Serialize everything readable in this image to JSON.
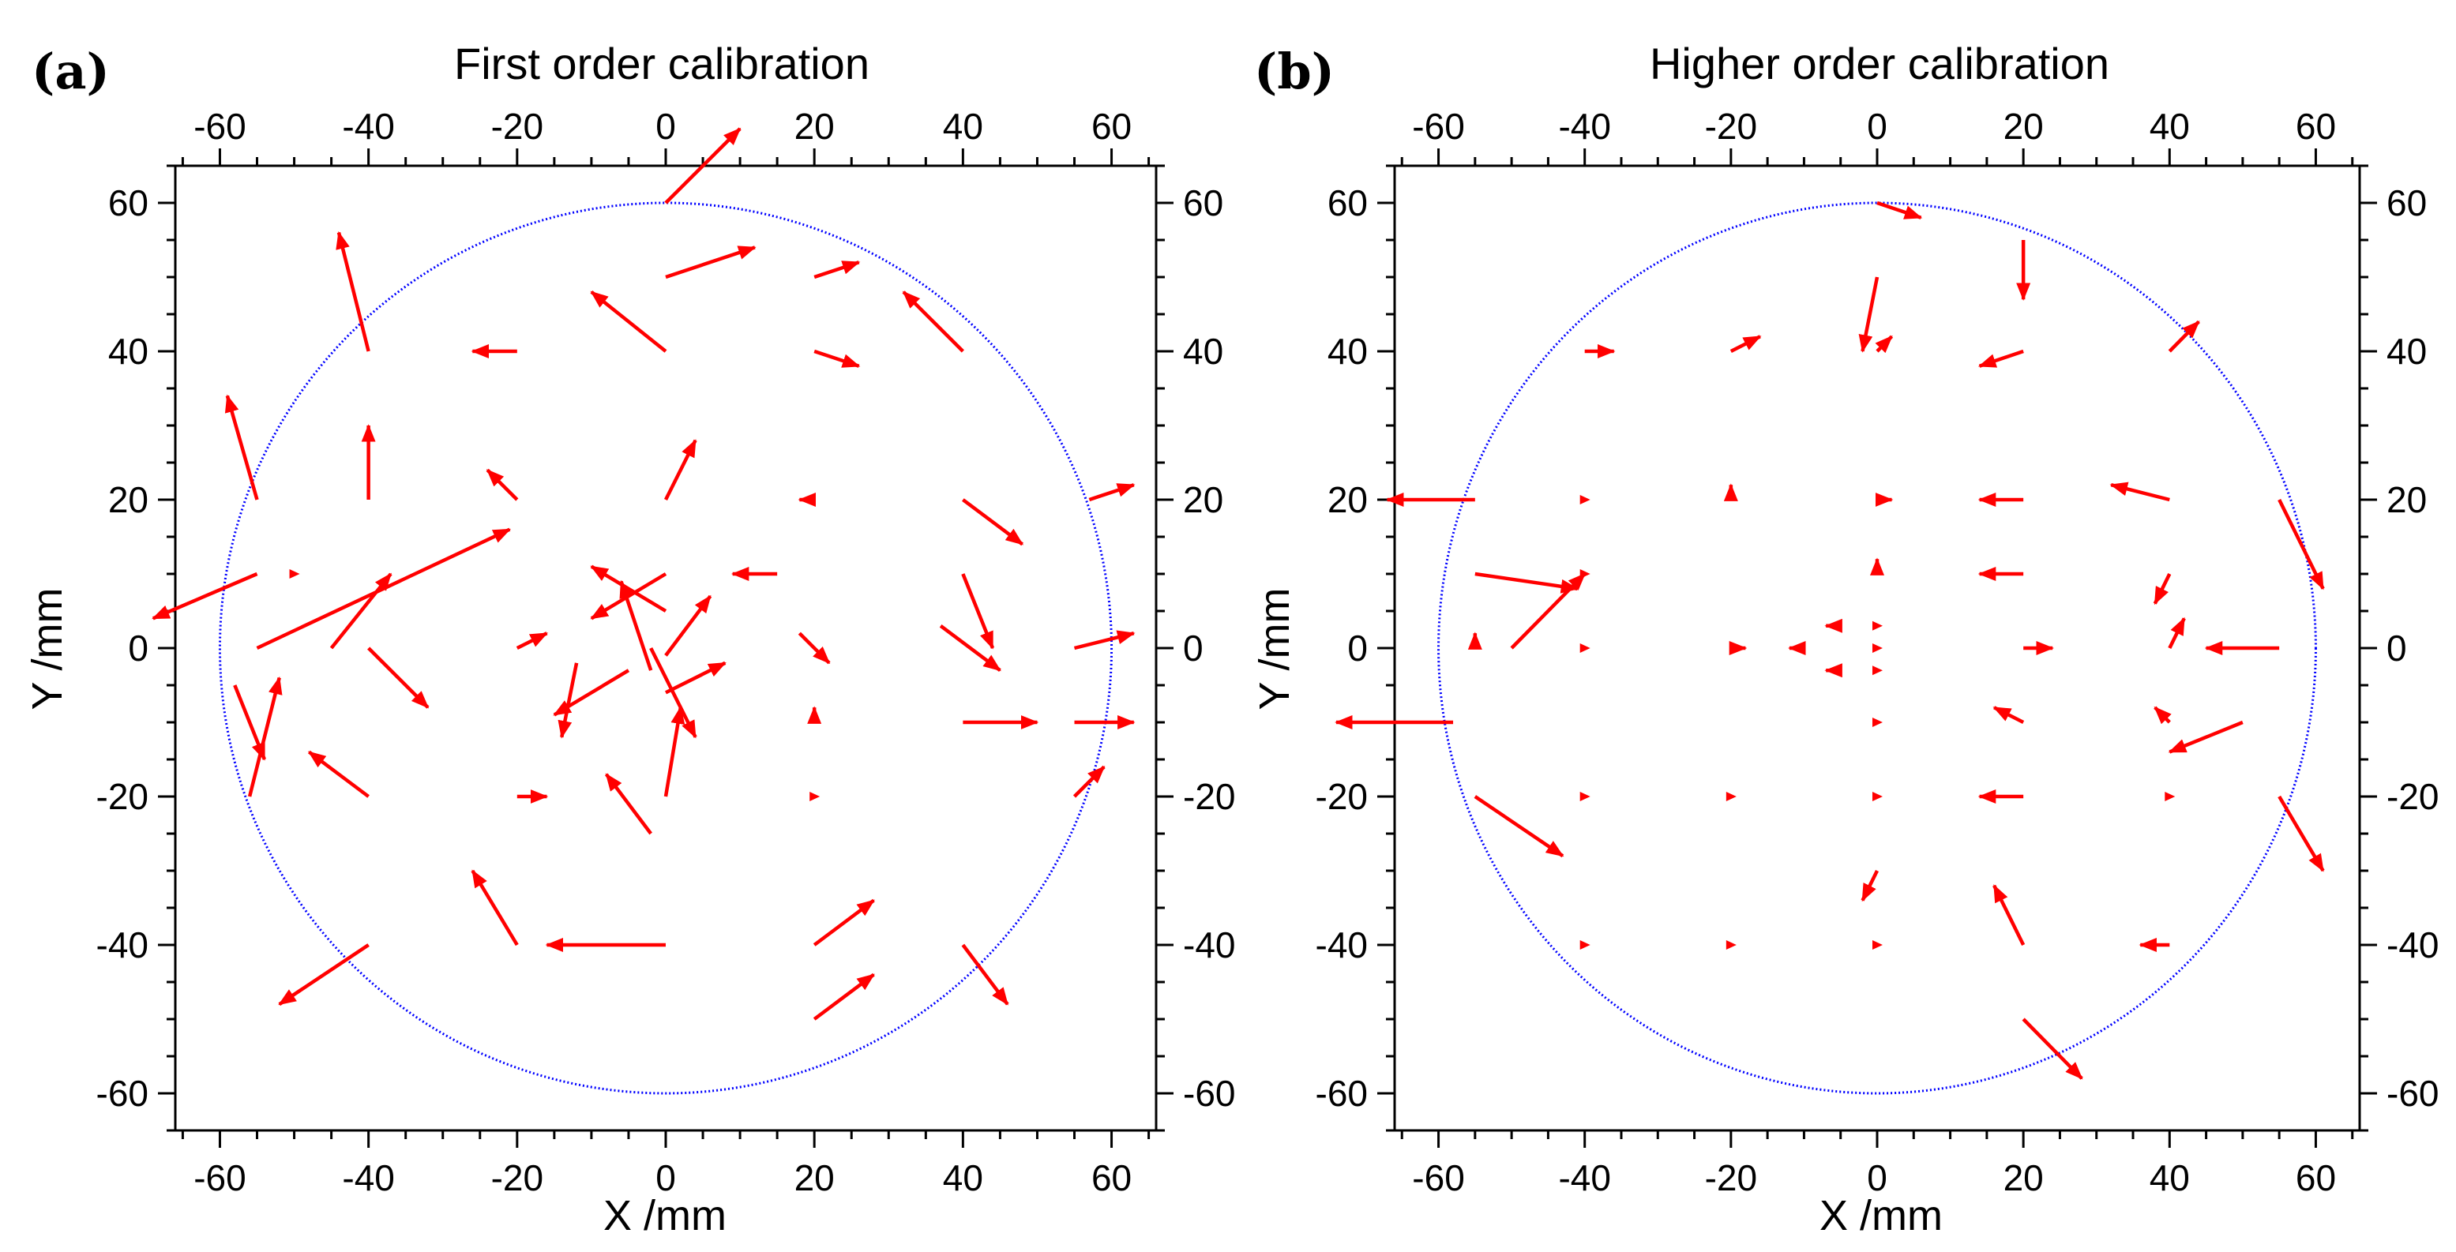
{
  "chart_data": [
    {
      "panel_label": "(a)",
      "type": "quiver",
      "title": "First order calibration",
      "xlabel": "X /mm",
      "ylabel": "Y /mm",
      "xlim": [
        -66,
        66
      ],
      "ylim": [
        -65,
        65
      ],
      "ticks": [
        -60,
        -40,
        -20,
        0,
        20,
        40,
        60
      ],
      "minor_step": 5,
      "circle": {
        "radius": 60,
        "color": "#0000ff"
      },
      "arrow_color": "#ff0000",
      "arrows": [
        [
          0,
          60,
          5,
          5
        ],
        [
          0,
          50,
          6,
          2
        ],
        [
          20,
          50,
          3,
          1
        ],
        [
          0,
          40,
          -5,
          4
        ],
        [
          20,
          40,
          3,
          -1
        ],
        [
          40,
          40,
          -4,
          4
        ],
        [
          -40,
          40,
          -2,
          8
        ],
        [
          -20,
          40,
          -3,
          0
        ],
        [
          -55,
          20,
          -2,
          7
        ],
        [
          -40,
          20,
          0,
          5
        ],
        [
          -20,
          20,
          -2,
          2
        ],
        [
          0,
          20,
          2,
          4
        ],
        [
          20,
          20,
          -1,
          0
        ],
        [
          40,
          20,
          4,
          -3
        ],
        [
          57,
          20,
          3,
          1
        ],
        [
          -55,
          10,
          -7,
          -3
        ],
        [
          -50,
          10,
          0,
          0
        ],
        [
          15,
          10,
          -3,
          0
        ],
        [
          40,
          10,
          2,
          -5
        ],
        [
          -45,
          0,
          4,
          5
        ],
        [
          -55,
          0,
          17,
          8
        ],
        [
          0,
          10,
          -5,
          -3
        ],
        [
          0,
          5,
          -5,
          3
        ],
        [
          -40,
          0,
          4,
          -4
        ],
        [
          -20,
          0,
          2,
          1
        ],
        [
          -12,
          -2,
          -1,
          -5
        ],
        [
          -5,
          -3,
          -5,
          -3
        ],
        [
          -2,
          -3,
          -2,
          6
        ],
        [
          0,
          -1,
          3,
          4
        ],
        [
          0,
          -6,
          4,
          2
        ],
        [
          18,
          2,
          2,
          -2
        ],
        [
          37,
          3,
          4,
          -3
        ],
        [
          55,
          0,
          4,
          1
        ],
        [
          -58,
          -5,
          2,
          -5
        ],
        [
          -56,
          -20,
          2,
          8
        ],
        [
          -40,
          -20,
          -4,
          3
        ],
        [
          -20,
          -20,
          2,
          0
        ],
        [
          0,
          -20,
          1,
          6
        ],
        [
          20,
          -20,
          0,
          0
        ],
        [
          20,
          -10,
          0,
          1
        ],
        [
          40,
          -10,
          5,
          0
        ],
        [
          -2,
          -25,
          -3,
          4
        ],
        [
          -20,
          -40,
          -3,
          5
        ],
        [
          0,
          -40,
          -8,
          0
        ],
        [
          20,
          -40,
          4,
          3
        ],
        [
          40,
          -40,
          3,
          -4
        ],
        [
          -40,
          -40,
          -6,
          -4
        ],
        [
          20,
          -50,
          4,
          3
        ],
        [
          55,
          -20,
          2,
          2
        ],
        [
          55,
          -10,
          4,
          0
        ],
        [
          -2,
          0,
          3,
          -6
        ]
      ]
    },
    {
      "panel_label": "(b)",
      "type": "quiver",
      "title": "Higher order calibration",
      "xlabel": "X /mm",
      "ylabel": "Y /mm",
      "xlim": [
        -66,
        66
      ],
      "ylim": [
        -65,
        65
      ],
      "ticks": [
        -60,
        -40,
        -20,
        0,
        20,
        40,
        60
      ],
      "minor_step": 5,
      "circle": {
        "radius": 60,
        "color": "#0000ff"
      },
      "arrow_color": "#ff0000",
      "arrows": [
        [
          0,
          60,
          3,
          -1
        ],
        [
          20,
          55,
          0,
          -4
        ],
        [
          0,
          50,
          -1,
          -5
        ],
        [
          -40,
          40,
          2,
          0
        ],
        [
          -20,
          40,
          2,
          1
        ],
        [
          0,
          40,
          1,
          1
        ],
        [
          20,
          40,
          -3,
          -1
        ],
        [
          40,
          40,
          2,
          2
        ],
        [
          -55,
          20,
          -6,
          0
        ],
        [
          -40,
          20,
          0,
          0
        ],
        [
          -20,
          20,
          0,
          1
        ],
        [
          0,
          20,
          1,
          0
        ],
        [
          20,
          20,
          -3,
          0
        ],
        [
          40,
          20,
          -4,
          1
        ],
        [
          55,
          20,
          3,
          -6
        ],
        [
          -55,
          10,
          7,
          -1
        ],
        [
          -40,
          10,
          0,
          0
        ],
        [
          0,
          10,
          0,
          1
        ],
        [
          20,
          10,
          -3,
          0
        ],
        [
          40,
          10,
          -1,
          -2
        ],
        [
          -55,
          0,
          0,
          1
        ],
        [
          -50,
          0,
          5,
          5
        ],
        [
          -40,
          0,
          0,
          0
        ],
        [
          -20,
          0,
          1,
          0
        ],
        [
          -10,
          0,
          -1,
          0
        ],
        [
          -5,
          3,
          -1,
          0
        ],
        [
          -5,
          -3,
          -1,
          0
        ],
        [
          0,
          3,
          0,
          0
        ],
        [
          0,
          0,
          0,
          0
        ],
        [
          0,
          -3,
          0,
          0
        ],
        [
          20,
          0,
          2,
          0
        ],
        [
          40,
          0,
          1,
          2
        ],
        [
          55,
          0,
          -5,
          0
        ],
        [
          -58,
          -10,
          -8,
          0
        ],
        [
          0,
          -10,
          0,
          0
        ],
        [
          20,
          -10,
          -2,
          1
        ],
        [
          40,
          -10,
          -1,
          1
        ],
        [
          50,
          -10,
          -5,
          -2
        ],
        [
          -55,
          -20,
          6,
          -4
        ],
        [
          -40,
          -20,
          0,
          0
        ],
        [
          -20,
          -20,
          0,
          0
        ],
        [
          0,
          -20,
          0,
          0
        ],
        [
          20,
          -20,
          -3,
          0
        ],
        [
          40,
          -20,
          0,
          0
        ],
        [
          55,
          -20,
          3,
          -5
        ],
        [
          0,
          -30,
          -1,
          -2
        ],
        [
          -40,
          -40,
          0,
          0
        ],
        [
          -20,
          -40,
          0,
          0
        ],
        [
          0,
          -40,
          0,
          0
        ],
        [
          20,
          -40,
          -2,
          4
        ],
        [
          40,
          -40,
          -2,
          0
        ],
        [
          20,
          -50,
          4,
          -4
        ]
      ]
    }
  ]
}
